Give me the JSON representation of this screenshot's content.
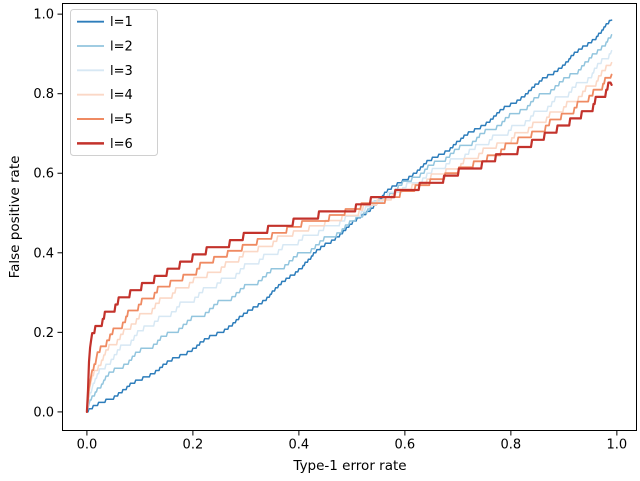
{
  "figure": {
    "background": "#ffffff",
    "text_color": "#000000",
    "spine_color": "#000000",
    "legend_border_color": "#d0d0d0",
    "legend_background": "#ffffff"
  },
  "chart_data": {
    "type": "line",
    "title": "",
    "xlabel": "Type-1 error rate",
    "ylabel": "False positive rate",
    "xlim": [
      -0.047,
      1.038
    ],
    "ylim": [
      -0.048,
      1.028
    ],
    "xticks": [
      0.0,
      0.2,
      0.4,
      0.6,
      0.8,
      1.0
    ],
    "yticks": [
      0.0,
      0.2,
      0.4,
      0.6,
      0.8,
      1.0
    ],
    "tick_decimals": 1,
    "grid": false,
    "legend_position": "upper left",
    "x": [
      0,
      0.005,
      0.01,
      0.02,
      0.04,
      0.07,
      0.1,
      0.15,
      0.2,
      0.25,
      0.3,
      0.35,
      0.4,
      0.45,
      0.5,
      0.53,
      0.56,
      0.6,
      0.65,
      0.7,
      0.75,
      0.8,
      0.85,
      0.9,
      0.95,
      0.99
    ],
    "series": [
      {
        "name": "l=1",
        "color": "#2d7dbb",
        "linewidth": 1.5,
        "step": 0.008,
        "y": [
          0,
          0.004,
          0.008,
          0.016,
          0.032,
          0.055,
          0.08,
          0.12,
          0.16,
          0.2,
          0.245,
          0.3,
          0.36,
          0.42,
          0.47,
          0.505,
          0.545,
          0.585,
          0.632,
          0.678,
          0.725,
          0.772,
          0.822,
          0.875,
          0.93,
          0.985
        ]
      },
      {
        "name": "l=2",
        "color": "#92c5de",
        "linewidth": 1.5,
        "step": 0.01,
        "y": [
          0,
          0.025,
          0.04,
          0.06,
          0.09,
          0.12,
          0.15,
          0.19,
          0.232,
          0.272,
          0.312,
          0.352,
          0.392,
          0.432,
          0.475,
          0.51,
          0.54,
          0.575,
          0.617,
          0.658,
          0.7,
          0.742,
          0.787,
          0.832,
          0.885,
          0.948
        ]
      },
      {
        "name": "l=3",
        "color": "#d7e8f4",
        "linewidth": 1.5,
        "step": 0.012,
        "y": [
          0,
          0.045,
          0.065,
          0.09,
          0.125,
          0.165,
          0.2,
          0.245,
          0.285,
          0.325,
          0.362,
          0.398,
          0.432,
          0.463,
          0.492,
          0.512,
          0.538,
          0.566,
          0.6,
          0.637,
          0.673,
          0.71,
          0.75,
          0.795,
          0.845,
          0.908
        ]
      },
      {
        "name": "l=4",
        "color": "#fbd8c6",
        "linewidth": 1.6,
        "step": 0.013,
        "y": [
          0,
          0.06,
          0.085,
          0.115,
          0.155,
          0.2,
          0.24,
          0.285,
          0.325,
          0.36,
          0.395,
          0.425,
          0.452,
          0.476,
          0.497,
          0.514,
          0.535,
          0.558,
          0.588,
          0.62,
          0.652,
          0.687,
          0.725,
          0.766,
          0.815,
          0.878
        ]
      },
      {
        "name": "l=5",
        "color": "#ef8a62",
        "linewidth": 1.8,
        "step": 0.015,
        "y": [
          0,
          0.08,
          0.105,
          0.14,
          0.185,
          0.23,
          0.27,
          0.315,
          0.352,
          0.385,
          0.414,
          0.44,
          0.463,
          0.483,
          0.502,
          0.517,
          0.532,
          0.552,
          0.578,
          0.606,
          0.635,
          0.668,
          0.702,
          0.742,
          0.788,
          0.848
        ]
      },
      {
        "name": "l=6",
        "color": "#c3322b",
        "linewidth": 2.2,
        "step": 0.018,
        "y": [
          0,
          0.16,
          0.185,
          0.215,
          0.25,
          0.285,
          0.31,
          0.35,
          0.385,
          0.413,
          0.437,
          0.458,
          0.476,
          0.492,
          0.507,
          0.52,
          0.533,
          0.548,
          0.57,
          0.594,
          0.62,
          0.649,
          0.681,
          0.716,
          0.76,
          0.822
        ]
      }
    ]
  }
}
